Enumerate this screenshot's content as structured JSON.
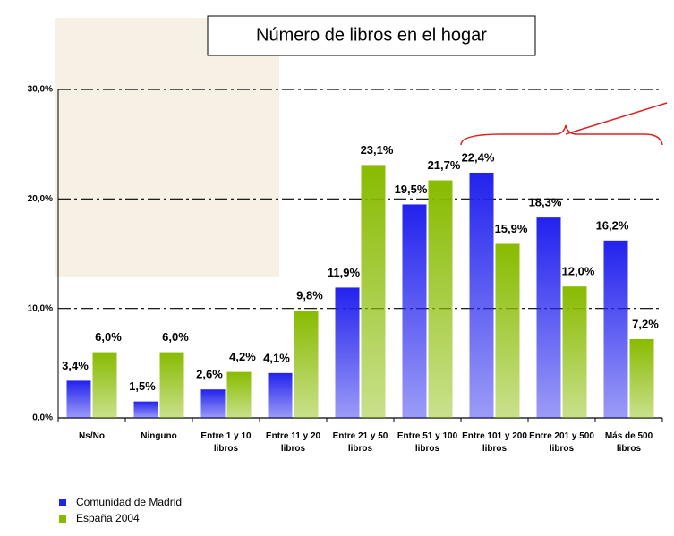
{
  "chart_data": {
    "type": "bar",
    "title": "Número de libros en el hogar",
    "categories": [
      "Ns/No",
      "Ninguno",
      "Entre 1 y 10 libros",
      "Entre 11 y 20 libros",
      "Entre 21 y 50 libros",
      "Entre 51 y 100 libros",
      "Entre 101 y 200 libros",
      "Entre 201 y 500 libros",
      "Más de 500 libros"
    ],
    "series": [
      {
        "name": "Comunidad de Madrid",
        "color": "#2222ee",
        "values": [
          3.4,
          1.5,
          2.6,
          4.1,
          11.9,
          19.5,
          22.4,
          18.3,
          16.2
        ],
        "value_labels": [
          "3,4%",
          "1,5%",
          "2,6%",
          "4,1%",
          "11,9%",
          "19,5%",
          "22,4%",
          "18,3%",
          "16,2%"
        ]
      },
      {
        "name": "España 2004",
        "color": "#88bb00",
        "values": [
          6.0,
          6.0,
          4.2,
          9.8,
          23.1,
          21.7,
          15.9,
          12.0,
          7.2
        ],
        "value_labels": [
          "6,0%",
          "6,0%",
          "4,2%",
          "9,8%",
          "23,1%",
          "21,7%",
          "15,9%",
          "12,0%",
          "7,2%"
        ]
      }
    ],
    "ylim": [
      0,
      30
    ],
    "yticks": [
      {
        "value": 0,
        "label": "0,0%"
      },
      {
        "value": 10,
        "label": "10,0%"
      },
      {
        "value": 20,
        "label": "20,0%"
      },
      {
        "value": 30,
        "label": "30,0%"
      }
    ],
    "grid": true
  }
}
